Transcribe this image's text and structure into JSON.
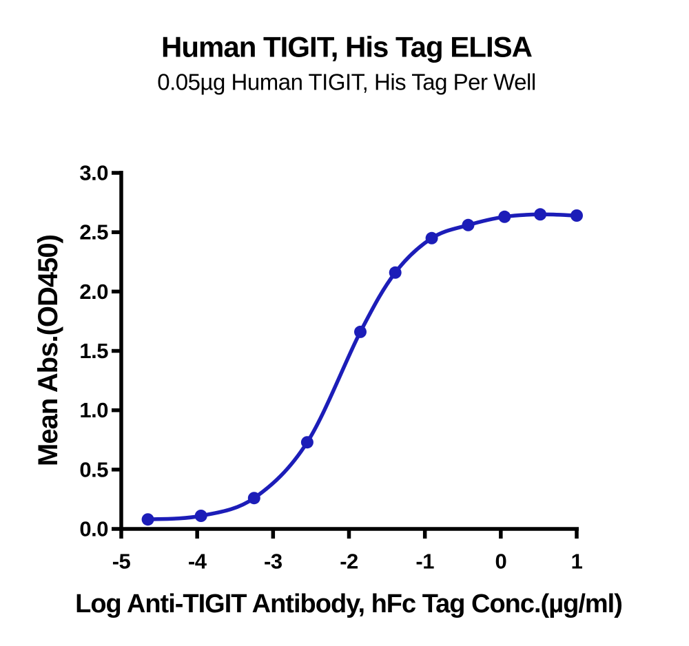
{
  "chart_data": {
    "type": "line",
    "title": "Human TIGIT, His Tag ELISA",
    "subtitle": "0.05µg Human TIGIT, His Tag Per Well",
    "xlabel": "Log Anti-TIGIT Antibody, hFc Tag Conc.(µg/ml)",
    "ylabel": "Mean Abs.(OD450)",
    "series": [
      {
        "x": [
          -4.65,
          -3.95,
          -3.25,
          -2.55,
          -1.85,
          -1.39,
          -0.91,
          -0.43,
          0.05,
          0.52,
          1.0
        ],
        "y": [
          0.08,
          0.11,
          0.26,
          0.73,
          1.66,
          2.16,
          2.45,
          2.56,
          2.63,
          2.65,
          2.64
        ],
        "color": "#1c1db8",
        "marker": "circle",
        "curve_style": "smooth-sigmoid-through-points"
      }
    ],
    "xticks": [
      "-5",
      "-4",
      "-3",
      "-2",
      "-1",
      "0",
      "1"
    ],
    "xtick_values": [
      -5,
      -4,
      -3,
      -2,
      -1,
      0,
      1
    ],
    "yticks": [
      "0.0",
      "0.5",
      "1.0",
      "1.5",
      "2.0",
      "2.5",
      "3.0"
    ],
    "ytick_values": [
      0,
      0.5,
      1,
      1.5,
      2,
      2.5,
      3
    ],
    "xlim": [
      -5,
      1
    ],
    "ylim": [
      0,
      3
    ],
    "grid": false,
    "legend_position": "none",
    "axis_color": "#000000",
    "text_color": "#000000",
    "background_color": "#ffffff"
  }
}
